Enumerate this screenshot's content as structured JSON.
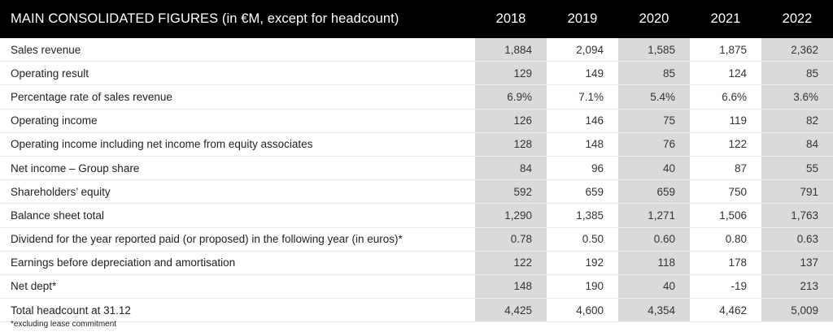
{
  "table": {
    "title": "MAIN CONSOLIDATED FIGURES  (in €M, except for headcount)",
    "years": [
      "2018",
      "2019",
      "2020",
      "2021",
      "2022"
    ],
    "rows": [
      {
        "label": "Sales revenue",
        "values": [
          "1,884",
          "2,094",
          "1,585",
          "1,875",
          "2,362"
        ]
      },
      {
        "label": "Operating result",
        "values": [
          "129",
          "149",
          "85",
          "124",
          "85"
        ]
      },
      {
        "label": "Percentage rate of sales revenue",
        "values": [
          "6.9%",
          "7.1%",
          "5.4%",
          "6.6%",
          "3.6%"
        ]
      },
      {
        "label": "Operating income",
        "values": [
          "126",
          "146",
          "75",
          "119",
          "82"
        ]
      },
      {
        "label": "Operating income including net income from equity associates",
        "values": [
          "128",
          "148",
          "76",
          "122",
          "84"
        ]
      },
      {
        "label": "Net income – Group share",
        "values": [
          "84",
          "96",
          "40",
          "87",
          "55"
        ]
      },
      {
        "label": "Shareholders’ equity",
        "values": [
          "592",
          "659",
          "659",
          "750",
          "791"
        ]
      },
      {
        "label": "Balance sheet total",
        "values": [
          "1,290",
          "1,385",
          "1,271",
          "1,506",
          "1,763"
        ]
      },
      {
        "label": "Dividend for the year reported paid (or proposed) in the following year (in euros)*",
        "values": [
          "0.78",
          "0.50",
          "0.60",
          "0.80",
          "0.63"
        ]
      },
      {
        "label": "Earnings before depreciation and amortisation",
        "values": [
          "122",
          "192",
          "118",
          "178",
          "137"
        ]
      },
      {
        "label": "Net dept*",
        "values": [
          "148",
          "190",
          "40",
          "-19",
          "213"
        ]
      },
      {
        "label": "Total headcount at 31.12",
        "values": [
          "4,425",
          "4,600",
          "4,354",
          "4,462",
          "5,009"
        ]
      }
    ],
    "shaded_columns": [
      0,
      2,
      4
    ],
    "shade_color": "#dadada",
    "header_color": "#000000"
  },
  "footnote": "*excluding lease commitment"
}
